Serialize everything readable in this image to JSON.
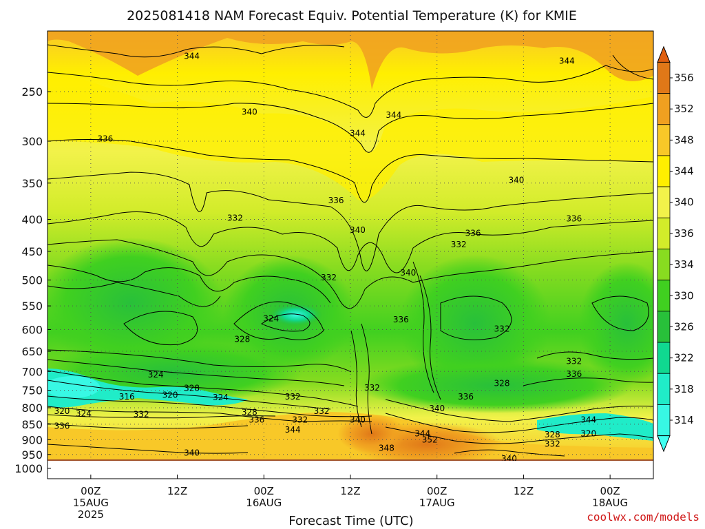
{
  "chart_data": {
    "type": "heatmap",
    "title": "2025081418 NAM Forecast Equiv. Potential Temperature (K) for KMIE",
    "xlabel": "Forecast Time (UTC)",
    "ylabel": "",
    "credit": "coolwx.com/models",
    "x_ticks": [
      {
        "hour": 6,
        "lines": [
          "00Z",
          "15AUG",
          "2025"
        ]
      },
      {
        "hour": 18,
        "lines": [
          "12Z"
        ]
      },
      {
        "hour": 30,
        "lines": [
          "00Z",
          "16AUG"
        ]
      },
      {
        "hour": 42,
        "lines": [
          "12Z"
        ]
      },
      {
        "hour": 54,
        "lines": [
          "00Z",
          "17AUG"
        ]
      },
      {
        "hour": 66,
        "lines": [
          "12Z"
        ]
      },
      {
        "hour": 78,
        "lines": [
          "00Z",
          "18AUG"
        ]
      }
    ],
    "xlim_hours": [
      0,
      84
    ],
    "y_ticks": [
      250,
      300,
      350,
      400,
      450,
      500,
      550,
      600,
      650,
      700,
      750,
      800,
      850,
      900,
      950,
      1000
    ],
    "ylim_hPa": [
      1000,
      200
    ],
    "y_scale": "log",
    "grid": true,
    "colorbar": {
      "labels": [
        356,
        352,
        348,
        344,
        340,
        336,
        334,
        330,
        326,
        322,
        318,
        314
      ],
      "colors": [
        "#e07818",
        "#f0a020",
        "#f8c828",
        "#ffef00",
        "#f2f24a",
        "#d2ec2a",
        "#88dc20",
        "#40d020",
        "#28c03a",
        "#10d890",
        "#20ecc8",
        "#38f8e4"
      ]
    },
    "surface_color": "#a0522d",
    "contour_labels": [
      {
        "t": 344,
        "hour": 20,
        "p": 220
      },
      {
        "t": 344,
        "hour": 72,
        "p": 224
      },
      {
        "t": 340,
        "hour": 28,
        "p": 270
      },
      {
        "t": 344,
        "hour": 48,
        "p": 273
      },
      {
        "t": 344,
        "hour": 43,
        "p": 292
      },
      {
        "t": 336,
        "hour": 8,
        "p": 298
      },
      {
        "t": 340,
        "hour": 65,
        "p": 347
      },
      {
        "t": 336,
        "hour": 40,
        "p": 374
      },
      {
        "t": 332,
        "hour": 26,
        "p": 399
      },
      {
        "t": 340,
        "hour": 43,
        "p": 417
      },
      {
        "t": 336,
        "hour": 59,
        "p": 422
      },
      {
        "t": 336,
        "hour": 73,
        "p": 400
      },
      {
        "t": 332,
        "hour": 57,
        "p": 440
      },
      {
        "t": 340,
        "hour": 50,
        "p": 488
      },
      {
        "t": 332,
        "hour": 39,
        "p": 497
      },
      {
        "t": 324,
        "hour": 31,
        "p": 578
      },
      {
        "t": 336,
        "hour": 49,
        "p": 580
      },
      {
        "t": 332,
        "hour": 63,
        "p": 600
      },
      {
        "t": 328,
        "hour": 27,
        "p": 623
      },
      {
        "t": 332,
        "hour": 73,
        "p": 676
      },
      {
        "t": 336,
        "hour": 73,
        "p": 708
      },
      {
        "t": 324,
        "hour": 15,
        "p": 710
      },
      {
        "t": 328,
        "hour": 63,
        "p": 733
      },
      {
        "t": 328,
        "hour": 20,
        "p": 746
      },
      {
        "t": 332,
        "hour": 45,
        "p": 745
      },
      {
        "t": 316,
        "hour": 11,
        "p": 770
      },
      {
        "t": 320,
        "hour": 17,
        "p": 765
      },
      {
        "t": 324,
        "hour": 24,
        "p": 772
      },
      {
        "t": 332,
        "hour": 34,
        "p": 770
      },
      {
        "t": 336,
        "hour": 58,
        "p": 770
      },
      {
        "t": 320,
        "hour": 2,
        "p": 812
      },
      {
        "t": 324,
        "hour": 5,
        "p": 820
      },
      {
        "t": 332,
        "hour": 13,
        "p": 822
      },
      {
        "t": 340,
        "hour": 54,
        "p": 804
      },
      {
        "t": 332,
        "hour": 38,
        "p": 812
      },
      {
        "t": 328,
        "hour": 28,
        "p": 815
      },
      {
        "t": 336,
        "hour": 29,
        "p": 838
      },
      {
        "t": 332,
        "hour": 35,
        "p": 838
      },
      {
        "t": 340,
        "hour": 43,
        "p": 838
      },
      {
        "t": 344,
        "hour": 75,
        "p": 838
      },
      {
        "t": 336,
        "hour": 2,
        "p": 858
      },
      {
        "t": 344,
        "hour": 34,
        "p": 870
      },
      {
        "t": 344,
        "hour": 52,
        "p": 882
      },
      {
        "t": 352,
        "hour": 53,
        "p": 903
      },
      {
        "t": 328,
        "hour": 70,
        "p": 885
      },
      {
        "t": 320,
        "hour": 75,
        "p": 882
      },
      {
        "t": 332,
        "hour": 70,
        "p": 916
      },
      {
        "t": 348,
        "hour": 47,
        "p": 930
      },
      {
        "t": 340,
        "hour": 20,
        "p": 947
      },
      {
        "t": 340,
        "hour": 64,
        "p": 968
      }
    ]
  }
}
